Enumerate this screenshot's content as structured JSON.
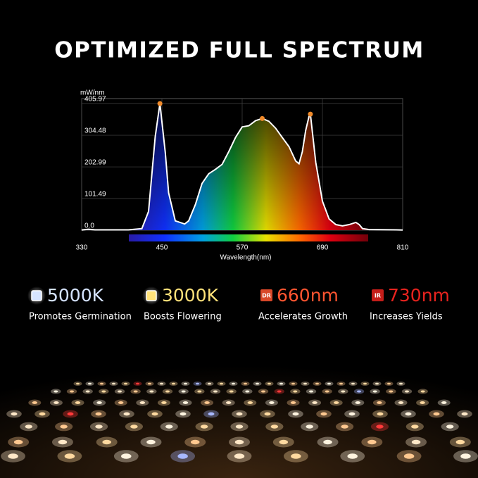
{
  "header": {
    "title": "OPTIMIZED FULL SPECTRUM"
  },
  "chart_data": {
    "type": "area",
    "x_label": "Wavelength(nm)",
    "y_label": "mW/nm",
    "x": [
      330,
      340,
      350,
      400,
      420,
      430,
      440,
      447,
      455,
      460,
      470,
      484,
      490,
      500,
      510,
      520,
      530,
      540,
      550,
      560,
      570,
      580,
      590,
      600,
      610,
      620,
      630,
      640,
      650,
      655,
      660,
      665,
      670,
      672,
      680,
      690,
      700,
      710,
      720,
      730,
      740,
      745,
      750,
      760,
      800,
      810
    ],
    "values": [
      0.5,
      3,
      1,
      1,
      5,
      60,
      300,
      405.97,
      250,
      120,
      30,
      20,
      30,
      82,
      150,
      181,
      195,
      211,
      252,
      297,
      331,
      335,
      351,
      358,
      349,
      327,
      297,
      268,
      222,
      213,
      252,
      320,
      365,
      372,
      218,
      93,
      36,
      18,
      14,
      18,
      25,
      18,
      5,
      2,
      1,
      0.5
    ],
    "color": "#ffffff",
    "peak_color": "#f08a2a",
    "xlim": [
      330,
      810
    ],
    "ylim": [
      0,
      422
    ],
    "xticks": [
      330,
      450,
      570,
      690,
      810
    ],
    "yticks": [
      {
        "value": 0,
        "label": "0.0"
      },
      101.49,
      202.99,
      304.48,
      405.97
    ],
    "grid": true
  },
  "features": [
    {
      "value": "5000K",
      "label": "Promotes Germination",
      "color": "#d6e4ff"
    },
    {
      "value": "3000K",
      "label": "Boosts Flowering",
      "color": "#ffe27a"
    },
    {
      "badge": "DR",
      "value": "660nm",
      "label": "Accelerates Growth",
      "color": "#ff5530"
    },
    {
      "badge": "IR",
      "value": "730nm",
      "label": "Increases Yields",
      "color": "#e8231e"
    }
  ]
}
